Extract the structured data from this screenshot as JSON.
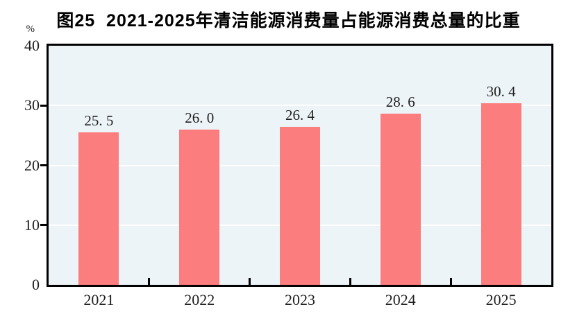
{
  "figure": {
    "title": "图25  2021-2025年清洁能源消费量占能源消费总量的比重",
    "unit_label": "%"
  },
  "chart_data": {
    "type": "bar",
    "title": "图25  2021-2025年清洁能源消费量占能源消费总量的比重",
    "categories": [
      "2021",
      "2022",
      "2023",
      "2024",
      "2025"
    ],
    "values": [
      25.5,
      26.0,
      26.4,
      28.6,
      30.4
    ],
    "value_labels": [
      "25. 5",
      "26. 0",
      "26. 4",
      "28. 6",
      "30. 4"
    ],
    "xlabel": "",
    "ylabel": "%",
    "ylim": [
      0,
      40
    ],
    "y_ticks": [
      0,
      10,
      20,
      30,
      40
    ],
    "gridlines": [
      10,
      20,
      30
    ],
    "grid": true,
    "legend": false,
    "bar_color": "#FC7D7D",
    "plot_bg": "#EDF4F8",
    "grid_color": "#FFFFFF",
    "axis_color": "#000000",
    "label_color": "#1F1F1F"
  }
}
